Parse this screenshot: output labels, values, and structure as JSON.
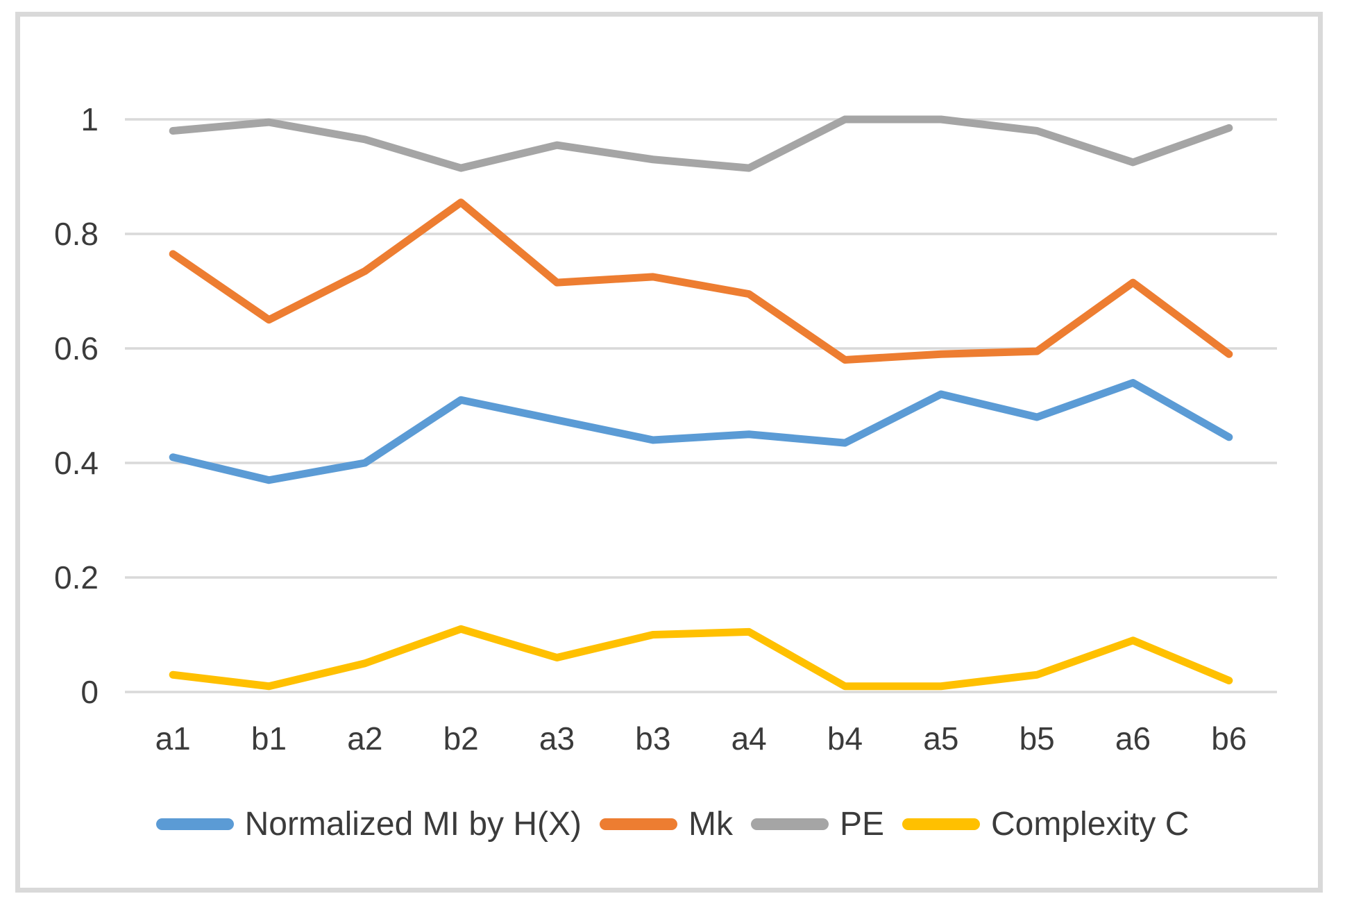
{
  "chart_data": {
    "type": "line",
    "title": "",
    "xlabel": "",
    "ylabel": "",
    "categories": [
      "a1",
      "b1",
      "a2",
      "b2",
      "a3",
      "b3",
      "a4",
      "b4",
      "a5",
      "b5",
      "a6",
      "b6"
    ],
    "series": [
      {
        "name": "Normalized MI by H(X)",
        "color": "#5B9BD5",
        "values": [
          0.41,
          0.37,
          0.4,
          0.51,
          0.475,
          0.44,
          0.45,
          0.435,
          0.52,
          0.48,
          0.54,
          0.445
        ]
      },
      {
        "name": "Mk",
        "color": "#ED7D31",
        "values": [
          0.765,
          0.65,
          0.735,
          0.855,
          0.715,
          0.725,
          0.695,
          0.58,
          0.59,
          0.595,
          0.715,
          0.59
        ]
      },
      {
        "name": "PE",
        "color": "#A5A5A5",
        "values": [
          0.98,
          0.995,
          0.965,
          0.915,
          0.955,
          0.93,
          0.915,
          1.0,
          1.0,
          0.98,
          0.925,
          0.985
        ]
      },
      {
        "name": "Complexity C",
        "color": "#FFC000",
        "values": [
          0.03,
          0.01,
          0.05,
          0.11,
          0.06,
          0.1,
          0.105,
          0.01,
          0.01,
          0.03,
          0.09,
          0.02
        ]
      }
    ],
    "y_ticks": [
      0,
      0.2,
      0.4,
      0.6,
      0.8,
      1
    ],
    "y_tick_labels": [
      "0",
      "0.2",
      "0.4",
      "0.6",
      "0.8",
      "1"
    ],
    "ylim": [
      0,
      1.06
    ],
    "grid": true,
    "gridline_color": "#D9D9D9",
    "axis_text_color": "#3B3B3B",
    "legend_position": "bottom",
    "frame_border_color": "#D9D9D9",
    "background_color": "#FFFFFF"
  }
}
